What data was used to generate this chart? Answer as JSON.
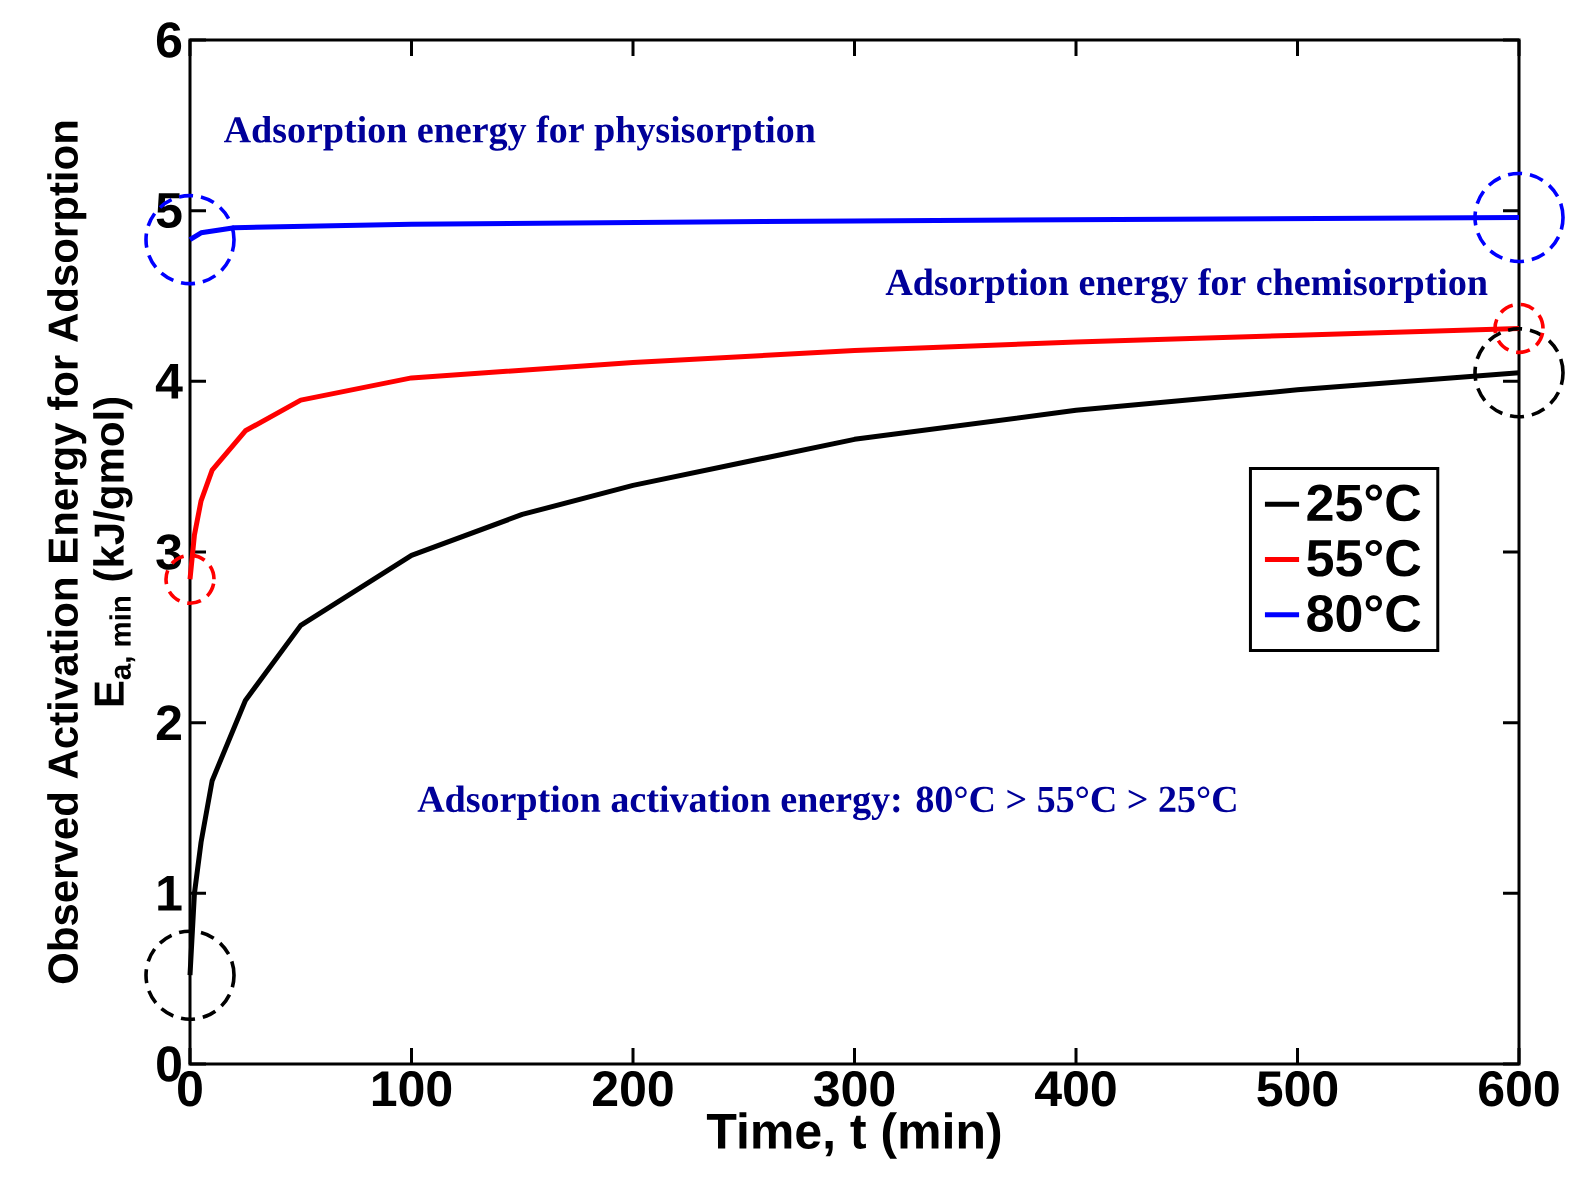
{
  "chart_data": {
    "type": "line",
    "xlabel": "Time, t (min)",
    "ylabel": "\\begin{array}{c}\\text{Observed Activation Energy for Adsorption}\\\\ \\text{E}_{\\text{a, min}}\\text{ (kJ/gmol)}\\end{array}",
    "xlim": [
      0,
      600
    ],
    "ylim": [
      0,
      6
    ],
    "xticks": [
      0,
      100,
      200,
      300,
      400,
      500,
      600
    ],
    "yticks": [
      0,
      1,
      2,
      3,
      4,
      5,
      6
    ],
    "grid": false,
    "legend": "right",
    "series": [
      {
        "name": "25°C",
        "color": "#000000",
        "x": [
          0,
          2,
          5,
          10,
          25,
          50,
          100,
          150,
          200,
          300,
          400,
          500,
          600
        ],
        "values": [
          0.52,
          1.0,
          1.3,
          1.66,
          2.13,
          2.57,
          2.98,
          3.22,
          3.39,
          3.66,
          3.83,
          3.95,
          4.05
        ]
      },
      {
        "name": "55°C",
        "color": "#ff0000",
        "x": [
          0,
          2,
          5,
          10,
          25,
          50,
          100,
          200,
          300,
          400,
          500,
          600
        ],
        "values": [
          2.84,
          3.1,
          3.3,
          3.48,
          3.71,
          3.89,
          4.02,
          4.11,
          4.18,
          4.23,
          4.27,
          4.31
        ]
      },
      {
        "name": "80°C",
        "color": "#0000ff",
        "x": [
          0,
          5,
          20,
          100,
          300,
          600
        ],
        "values": [
          4.83,
          4.87,
          4.9,
          4.92,
          4.94,
          4.96
        ]
      }
    ],
    "annotations": [
      "Adsorption energy for physisorption",
      "Adsorption energy for chemisorption",
      "Adsorption activation energy: 80°C > 55°C > 25°C"
    ]
  }
}
